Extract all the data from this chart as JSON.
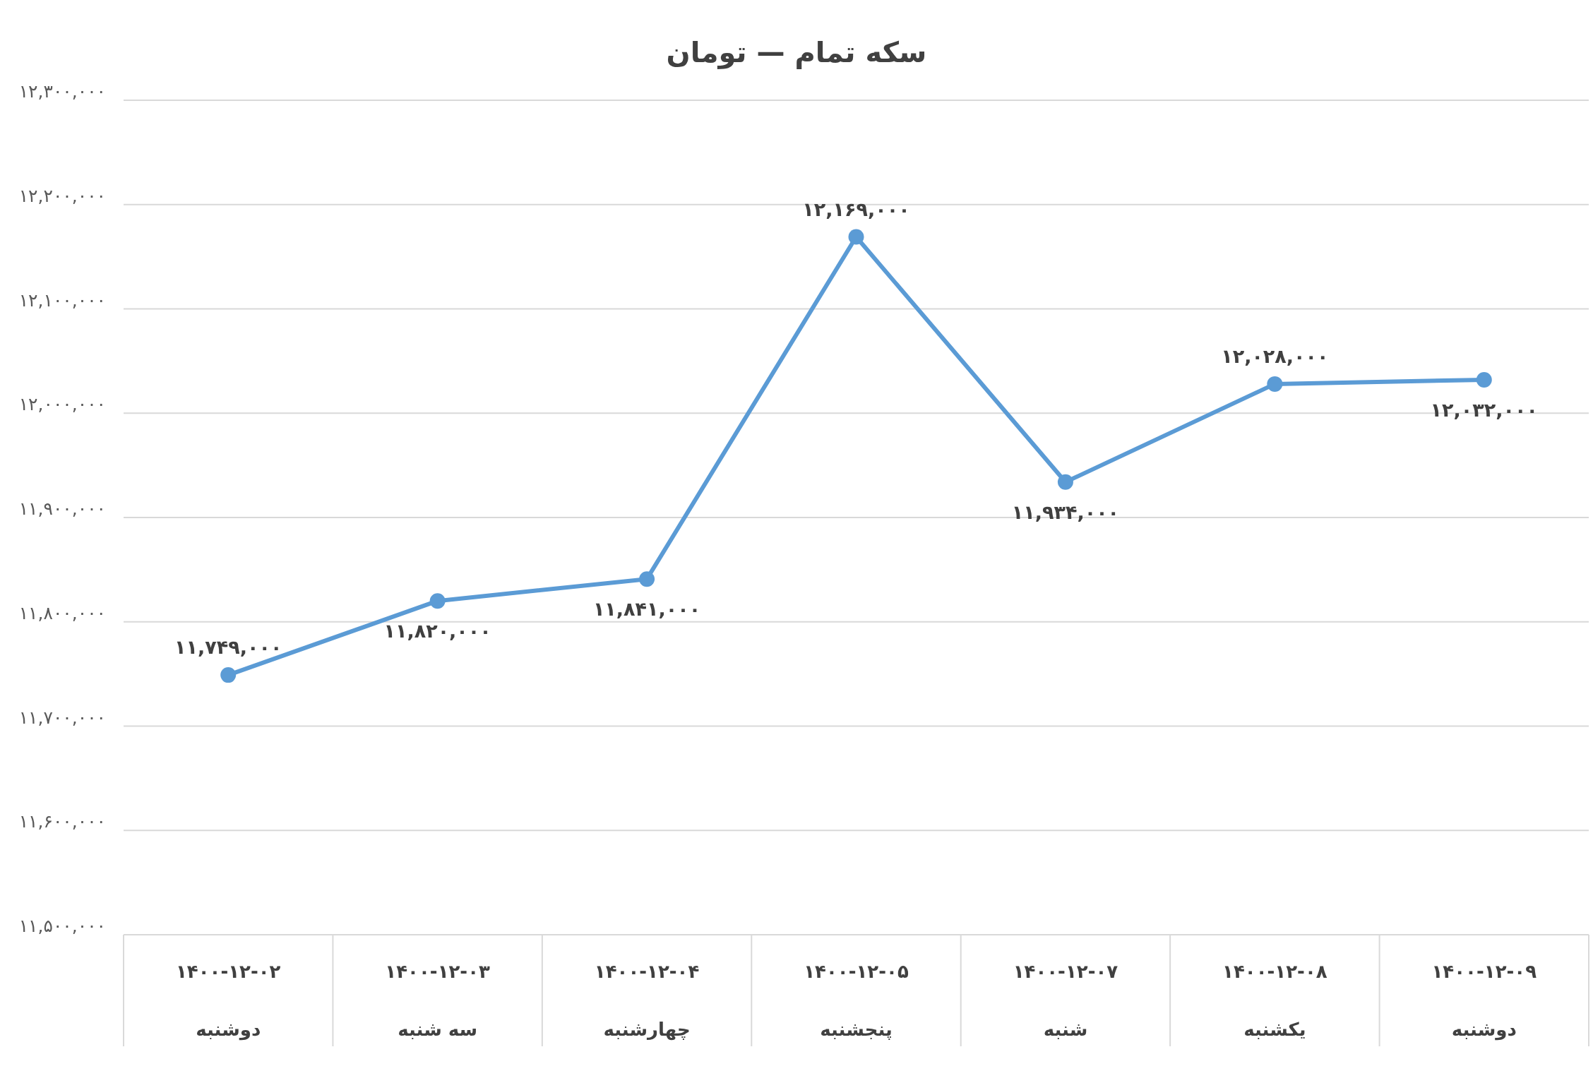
{
  "chart_data": {
    "type": "line",
    "title": "سکه تمام — تومان",
    "categories": [
      "۱۴۰۰-۱۲-۰۲\nدوشنبه",
      "۱۴۰۰-۱۲-۰۳\nسه شنبه",
      "۱۴۰۰-۱۲-۰۴\nچهارشنبه",
      "۱۴۰۰-۱۲-۰۵\nپنجشنبه",
      "۱۴۰۰-۱۲-۰۷\nشنبه",
      "۱۴۰۰-۱۲-۰۸\nیکشنبه",
      "۱۴۰۰-۱۲-۰۹\nدوشنبه"
    ],
    "series": [
      {
        "color": "#5b9bd5",
        "values": [
          11749000,
          11820000,
          11841000,
          12169000,
          11934000,
          12028000,
          12032000
        ],
        "value_labels": [
          "۱۱,۷۴۹,۰۰۰",
          "۱۱,۸۲۰,۰۰۰",
          "۱۱,۸۴۱,۰۰۰",
          "۱۲,۱۶۹,۰۰۰",
          "۱۱,۹۳۴,۰۰۰",
          "۱۲,۰۲۸,۰۰۰",
          "۱۲,۰۳۲,۰۰۰"
        ]
      }
    ],
    "ylim": [
      11500000,
      12300000
    ],
    "yticks": [
      {
        "value": 11500000,
        "label": "۱۱,۵۰۰,۰۰۰"
      },
      {
        "value": 11600000,
        "label": "۱۱,۶۰۰,۰۰۰"
      },
      {
        "value": 11700000,
        "label": "۱۱,۷۰۰,۰۰۰"
      },
      {
        "value": 11800000,
        "label": "۱۱,۸۰۰,۰۰۰"
      },
      {
        "value": 11900000,
        "label": "۱۱,۹۰۰,۰۰۰"
      },
      {
        "value": 12000000,
        "label": "۱۲,۰۰۰,۰۰۰"
      },
      {
        "value": 12100000,
        "label": "۱۲,۱۰۰,۰۰۰"
      },
      {
        "value": 12200000,
        "label": "۱۲,۲۰۰,۰۰۰"
      },
      {
        "value": 12300000,
        "label": "۱۲,۳۰۰,۰۰۰"
      }
    ],
    "grid": "y",
    "marker": "circle",
    "line_style": "solid"
  }
}
